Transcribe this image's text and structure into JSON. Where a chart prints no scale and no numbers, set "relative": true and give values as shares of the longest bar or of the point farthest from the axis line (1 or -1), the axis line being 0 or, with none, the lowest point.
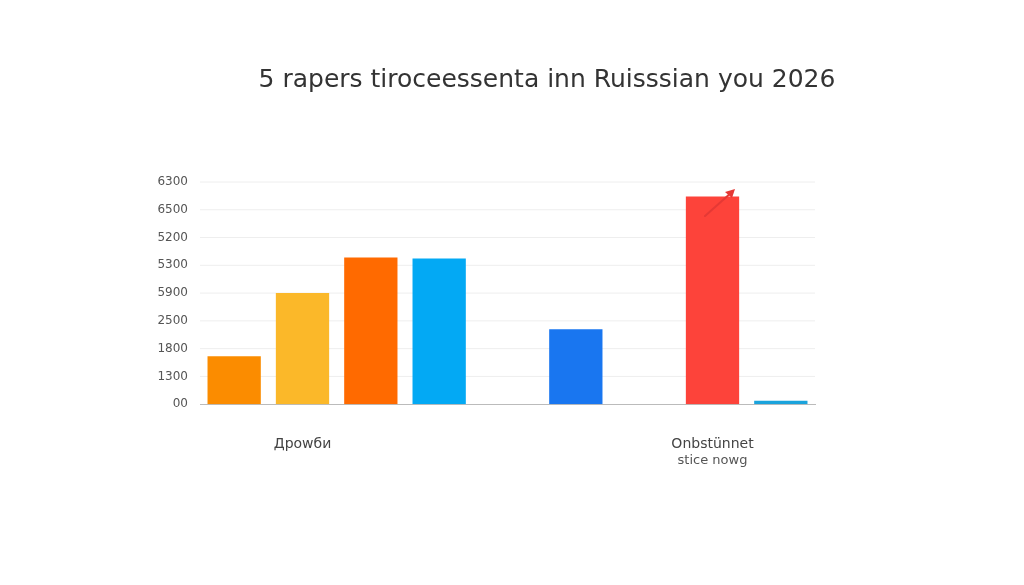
{
  "chart_data": {
    "type": "bar",
    "title": "5 rapers tiroceessenta inn Ruisssian you 2026",
    "categories": [
      null,
      "Дpowби",
      null,
      null,
      null,
      null,
      null,
      "Onbstünnet",
      null
    ],
    "values": [
      0.231,
      0.535,
      0.706,
      0.702,
      null,
      0.361,
      null,
      1,
      0.017
    ],
    "colors": [
      "#fb8c00",
      "#fbb829",
      "#ff6a00",
      "#03a9f4",
      "#cccccc",
      "#1976f0",
      "#cccccc",
      "#fd433a",
      "#1aa3dc"
    ],
    "relative": true,
    "annotations": [
      "6300",
      "6500",
      "5200",
      "5300",
      "5900",
      "2500",
      "1800",
      "1300",
      "00",
      "stice nowg"
    ],
    "grid": "y",
    "legend": false
  }
}
